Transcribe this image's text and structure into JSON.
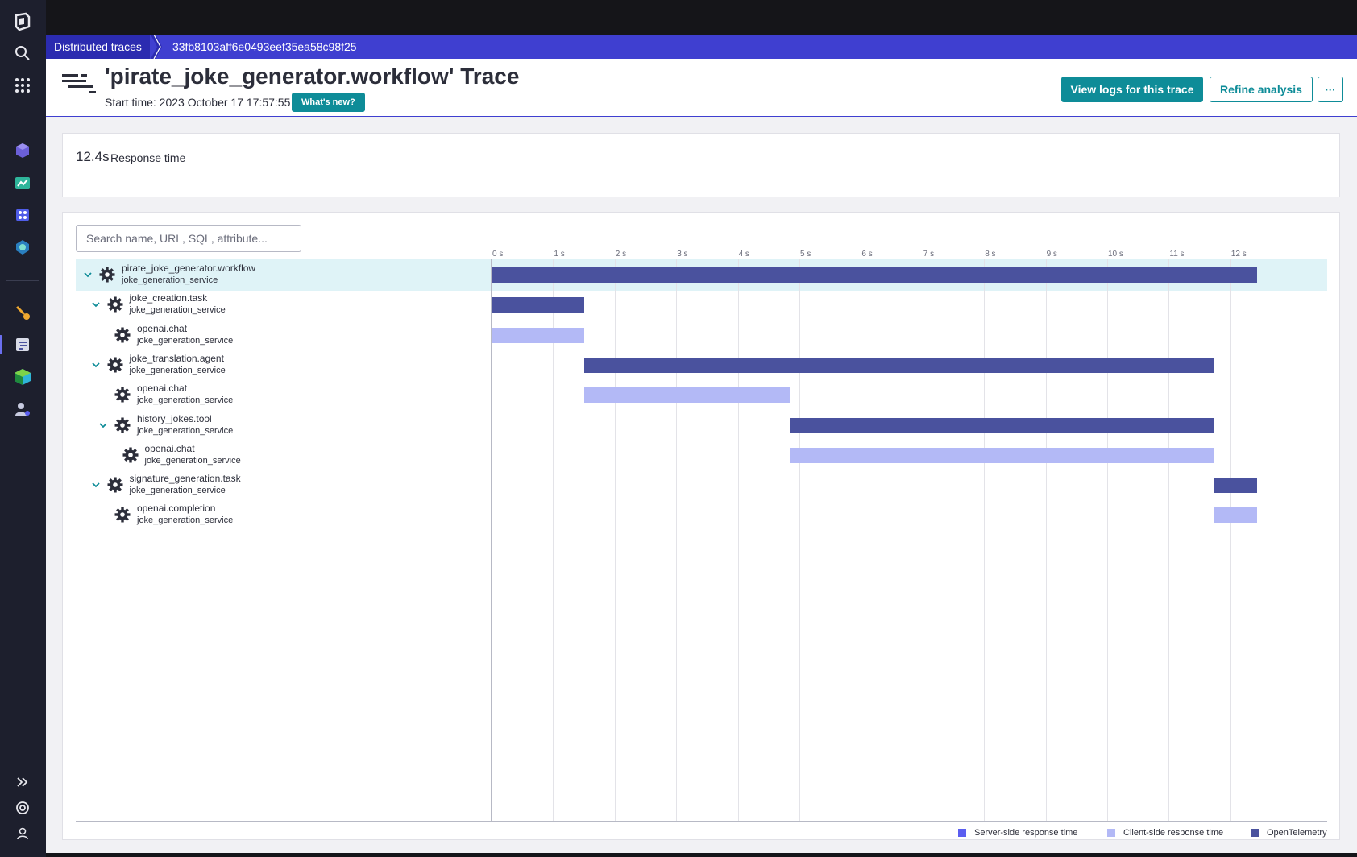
{
  "breadcrumb": {
    "parent": "Distributed traces",
    "current": "33fb8103aff6e0493eef35ea58c98f25"
  },
  "header": {
    "title": "'pirate_joke_generator.workflow' Trace",
    "start_time": "Start time: 2023 October 17 17:57:55",
    "whats_new": "What's new?",
    "view_logs": "View logs for this trace",
    "refine": "Refine analysis",
    "more": "···"
  },
  "response_time": {
    "value": "12.4s",
    "label": "Response time"
  },
  "search": {
    "placeholder": "Search name, URL, SQL, attribute..."
  },
  "timeline": {
    "max_seconds": 12.85,
    "ticks": [
      "0 s",
      "1 s",
      "2 s",
      "3 s",
      "4 s",
      "5 s",
      "6 s",
      "7 s",
      "8 s",
      "9 s",
      "10 s",
      "11 s",
      "12 s"
    ],
    "spans": [
      {
        "name": "pirate_joke_generator.workflow",
        "service": "joke_generation_service",
        "depth": 0,
        "expandable": true,
        "start": 0.0,
        "end": 12.43,
        "kind": "opentelemetry",
        "selected": true
      },
      {
        "name": "joke_creation.task",
        "service": "joke_generation_service",
        "depth": 1,
        "expandable": true,
        "start": 0.0,
        "end": 1.5,
        "kind": "opentelemetry"
      },
      {
        "name": "openai.chat",
        "service": "joke_generation_service",
        "depth": 2,
        "expandable": false,
        "start": 0.0,
        "end": 1.5,
        "kind": "client"
      },
      {
        "name": "joke_translation.agent",
        "service": "joke_generation_service",
        "depth": 1,
        "expandable": true,
        "start": 1.51,
        "end": 11.73,
        "kind": "opentelemetry"
      },
      {
        "name": "openai.chat",
        "service": "joke_generation_service",
        "depth": 2,
        "expandable": false,
        "start": 1.51,
        "end": 4.84,
        "kind": "client"
      },
      {
        "name": "history_jokes.tool",
        "service": "joke_generation_service",
        "depth": 2,
        "expandable": true,
        "start": 4.84,
        "end": 11.73,
        "kind": "opentelemetry"
      },
      {
        "name": "openai.chat",
        "service": "joke_generation_service",
        "depth": 3,
        "expandable": false,
        "start": 4.84,
        "end": 11.73,
        "kind": "client"
      },
      {
        "name": "signature_generation.task",
        "service": "joke_generation_service",
        "depth": 1,
        "expandable": true,
        "start": 11.73,
        "end": 12.43,
        "kind": "opentelemetry"
      },
      {
        "name": "openai.completion",
        "service": "joke_generation_service",
        "depth": 2,
        "expandable": false,
        "start": 11.73,
        "end": 12.43,
        "kind": "client"
      }
    ]
  },
  "legend": [
    {
      "label": "Server-side response time",
      "color": "#5b5ef0"
    },
    {
      "label": "Client-side response time",
      "color": "#b3b9f6"
    },
    {
      "label": "OpenTelemetry",
      "color": "#4a529e"
    }
  ],
  "colors": {
    "opentelemetry": "#4a529e",
    "client": "#b3b9f6",
    "accent": "#0e8c98",
    "brand": "#3f3fd0"
  }
}
